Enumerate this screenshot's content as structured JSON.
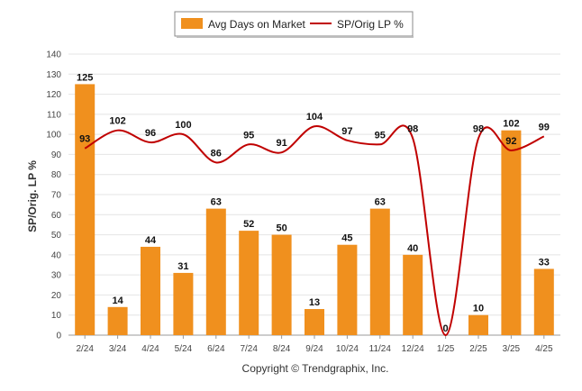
{
  "chart_data": {
    "type": "bar",
    "categories": [
      "2/24",
      "3/24",
      "4/24",
      "5/24",
      "6/24",
      "7/24",
      "8/24",
      "9/24",
      "10/24",
      "11/24",
      "12/24",
      "1/25",
      "2/25",
      "3/25",
      "4/25"
    ],
    "series": [
      {
        "name": "Avg Days on Market",
        "type": "bar",
        "color": "#F0901E",
        "values": [
          125,
          14,
          44,
          31,
          63,
          52,
          50,
          13,
          45,
          63,
          40,
          0,
          10,
          102,
          33
        ]
      },
      {
        "name": "SP/Orig LP %",
        "type": "line",
        "color": "#C00000",
        "values": [
          93,
          102,
          96,
          100,
          86,
          95,
          91,
          104,
          97,
          95,
          98,
          0,
          98,
          92,
          99
        ]
      }
    ],
    "ylabel": "SP/Orig. LP %",
    "ylim": [
      0,
      140
    ],
    "yticks": [
      0,
      10,
      20,
      30,
      40,
      50,
      60,
      70,
      80,
      90,
      100,
      110,
      120,
      130,
      140
    ],
    "grid": true,
    "legend": "top-center",
    "footer": "Copyright © Trendgraphix, Inc."
  }
}
